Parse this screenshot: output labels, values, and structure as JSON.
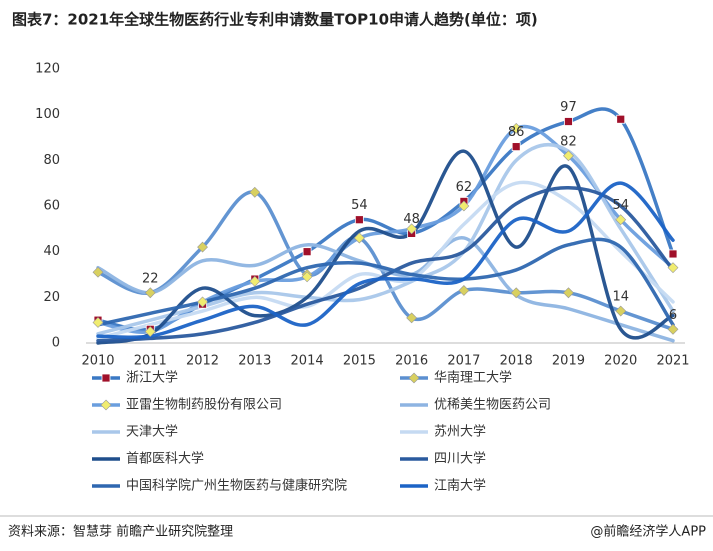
{
  "chart_data": {
    "type": "line",
    "smooth": true,
    "title": "图表7：2021年全球生物医药行业专利申请数量TOP10申请人趋势(单位：项)",
    "source": "资料来源：智慧芽 前瞻产业研究院整理",
    "credit": "@前瞻经济学人APP",
    "categories": [
      "2010",
      "2011",
      "2012",
      "2013",
      "2014",
      "2015",
      "2016",
      "2017",
      "2018",
      "2019",
      "2020",
      "2021"
    ],
    "ylim": [
      0,
      120
    ],
    "yticks": [
      0,
      20,
      40,
      60,
      80,
      100,
      120
    ],
    "grid": false,
    "series": [
      {
        "name": "浙江大学",
        "color": "#3a78c4",
        "marker": "square",
        "marker_color": "#a0102a",
        "values": [
          10,
          6,
          17,
          28,
          40,
          54,
          48,
          62,
          86,
          97,
          98,
          39
        ]
      },
      {
        "name": "华南理工大学",
        "color": "#5b8fd0",
        "marker": "diamond",
        "marker_color": "#d8d060",
        "values": [
          31,
          22,
          42,
          66,
          30,
          46,
          11,
          23,
          22,
          22,
          14,
          6
        ]
      },
      {
        "name": "亚雷生物制药股份有限公司",
        "color": "#6a9ede",
        "marker": "diamond",
        "marker_color": "#f0ec70",
        "values": [
          9,
          5,
          18,
          27,
          29,
          46,
          50,
          60,
          94,
          82,
          54,
          33
        ]
      },
      {
        "name": "优稀美生物医药公司",
        "color": "#8db4e2",
        "values": [
          33,
          22,
          36,
          34,
          43,
          36,
          30,
          46,
          21,
          15,
          8,
          1
        ]
      },
      {
        "name": "天津大学",
        "color": "#a9c7ea",
        "values": [
          4,
          10,
          16,
          22,
          20,
          19,
          27,
          40,
          80,
          84,
          50,
          14
        ]
      },
      {
        "name": "苏州大学",
        "color": "#c5daf2",
        "values": [
          2,
          8,
          14,
          20,
          16,
          30,
          28,
          52,
          70,
          62,
          40,
          18
        ]
      },
      {
        "name": "首都医科大学",
        "color": "#1f4e8c",
        "values": [
          0,
          4,
          24,
          12,
          20,
          49,
          48,
          84,
          42,
          77,
          6,
          12
        ]
      },
      {
        "name": "四川大学",
        "color": "#2a5a9e",
        "values": [
          1,
          2,
          4,
          9,
          17,
          24,
          35,
          40,
          61,
          68,
          60,
          32
        ]
      },
      {
        "name": "中国科学院广州生物医药与健康研究院",
        "color": "#2e67b0",
        "values": [
          8,
          13,
          18,
          24,
          33,
          35,
          30,
          28,
          32,
          43,
          42,
          8
        ]
      },
      {
        "name": "江南大学",
        "color": "#1b63c6",
        "values": [
          3,
          3,
          10,
          16,
          8,
          26,
          28,
          28,
          54,
          49,
          70,
          45
        ]
      }
    ]
  }
}
